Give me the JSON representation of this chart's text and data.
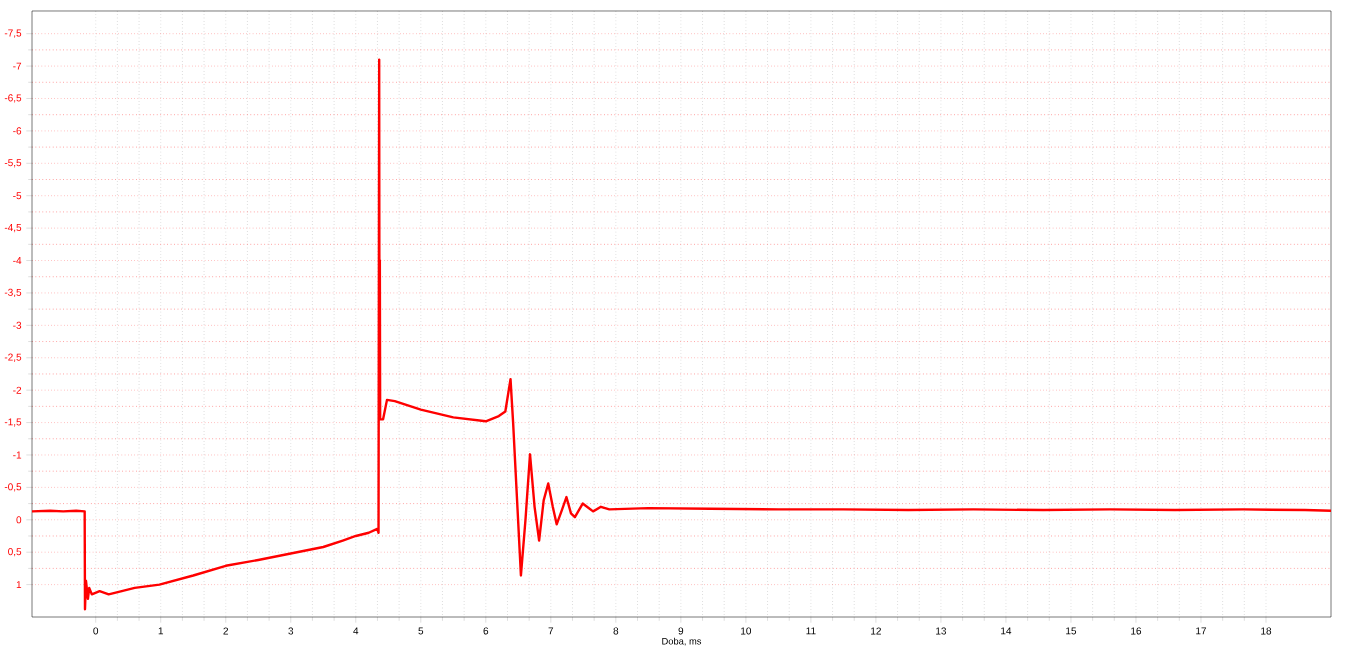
{
  "chart_data": {
    "type": "line",
    "xlabel": "Doba, ms",
    "color": "#ff0000",
    "x": [
      -0.98,
      -0.7,
      -0.5,
      -0.3,
      -0.17,
      -0.165,
      -0.15,
      -0.12,
      -0.1,
      -0.06,
      0.06,
      0.2,
      0.4,
      0.6,
      0.98,
      1.5,
      2.0,
      2.5,
      3.0,
      3.5,
      3.8,
      4.0,
      4.2,
      4.33,
      4.35,
      4.36,
      4.365,
      4.37,
      4.375,
      4.42,
      4.48,
      4.6,
      5.0,
      5.5,
      6.0,
      6.2,
      6.3,
      6.38,
      6.42,
      6.54,
      6.61,
      6.68,
      6.75,
      6.82,
      6.89,
      6.96,
      7.03,
      7.09,
      7.17,
      7.24,
      7.31,
      7.37,
      7.49,
      7.65,
      7.77,
      7.9,
      8.5,
      9.45,
      10.5,
      11.5,
      12.5,
      13.5,
      14.58,
      15.6,
      16.6,
      17.65,
      18.6,
      19.0
    ],
    "values": [
      -0.13,
      -0.14,
      -0.13,
      -0.14,
      -0.13,
      1.38,
      0.94,
      1.22,
      1.05,
      1.15,
      1.1,
      1.15,
      1.1,
      1.05,
      1.0,
      0.86,
      0.71,
      0.62,
      0.52,
      0.42,
      0.32,
      0.25,
      0.2,
      0.14,
      0.2,
      -7.1,
      -1.55,
      -4.0,
      -1.55,
      -1.55,
      -1.85,
      -1.83,
      -1.7,
      -1.58,
      -1.52,
      -1.6,
      -1.67,
      -2.17,
      -1.5,
      0.86,
      0,
      -1.01,
      -0.2,
      0.32,
      -0.3,
      -0.56,
      -0.2,
      0.07,
      -0.15,
      -0.35,
      -0.1,
      -0.04,
      -0.25,
      -0.13,
      -0.2,
      -0.16,
      -0.18,
      -0.17,
      -0.16,
      -0.16,
      -0.15,
      -0.16,
      -0.15,
      -0.16,
      -0.15,
      -0.16,
      -0.15,
      -0.14
    ],
    "xlim": [
      -0.98,
      19.0
    ],
    "xticks": [
      0,
      1,
      2,
      3,
      4,
      5,
      6,
      7,
      8,
      9,
      10,
      11,
      12,
      13,
      14,
      15,
      16,
      17,
      18
    ],
    "ylim": [
      1.5,
      -7.85
    ],
    "yticks": [
      {
        "value": -7.5,
        "label": "-7,5"
      },
      -7,
      {
        "value": -6.5,
        "label": "-6,5"
      },
      -6,
      {
        "value": -5.5,
        "label": "-5,5"
      },
      -5,
      {
        "value": -4.5,
        "label": "-4,5"
      },
      -4,
      {
        "value": -3.5,
        "label": "-3,5"
      },
      -3,
      {
        "value": -2.5,
        "label": "-2,5"
      },
      -2,
      {
        "value": -1.5,
        "label": "-1,5"
      },
      -1,
      {
        "value": -0.5,
        "label": "-0,5"
      },
      0,
      {
        "value": 0.5,
        "label": "0,5"
      },
      1
    ],
    "grid": true
  }
}
